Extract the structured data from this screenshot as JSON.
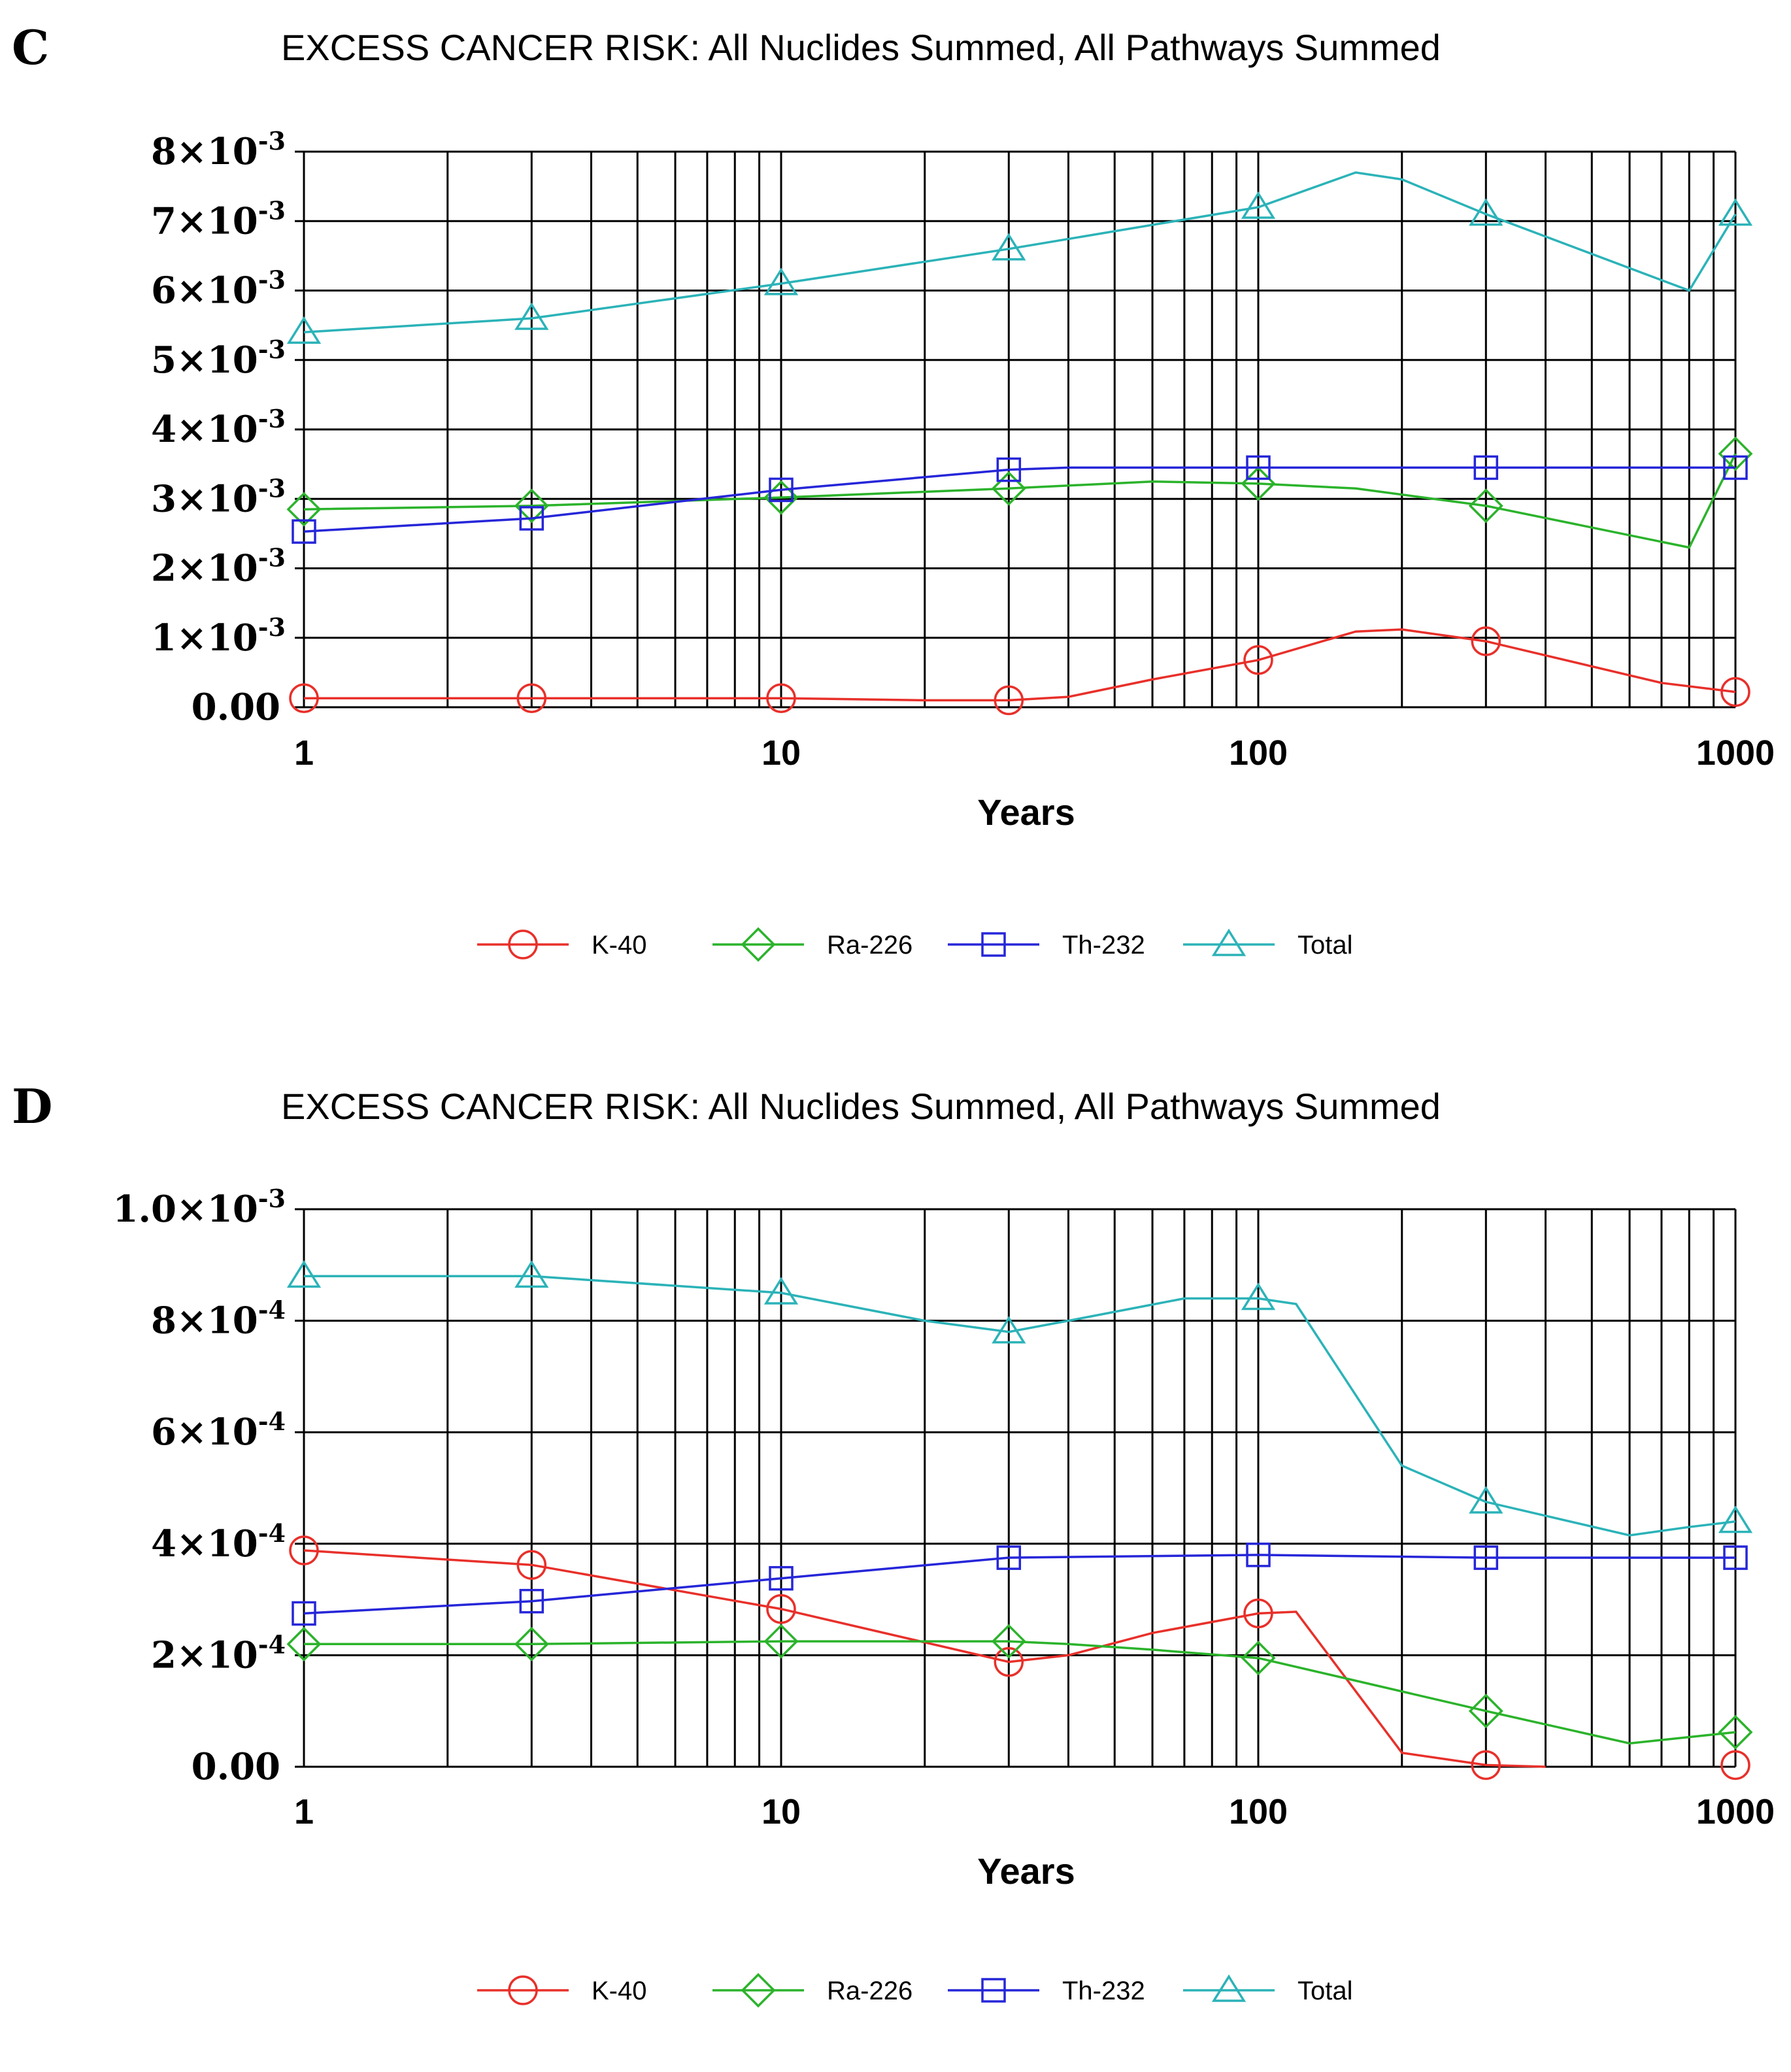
{
  "chart_data": [
    {
      "panel_label": "C",
      "type": "line",
      "title": "EXCESS CANCER RISK: All Nuclides Summed, All Pathways Summed",
      "xlabel": "Years",
      "ylabel": "",
      "x_scale": "log",
      "xlim": [
        1,
        1000
      ],
      "ylim": [
        0,
        0.008
      ],
      "x_tick_labels": [
        "1",
        "10",
        "100",
        "1000"
      ],
      "y_ticks": [
        {
          "value": 0,
          "base": "0.00",
          "exp": ""
        },
        {
          "value": 0.001,
          "base": "1×10",
          "exp": "-3"
        },
        {
          "value": 0.002,
          "base": "2×10",
          "exp": "-3"
        },
        {
          "value": 0.003,
          "base": "3×10",
          "exp": "-3"
        },
        {
          "value": 0.004,
          "base": "4×10",
          "exp": "-3"
        },
        {
          "value": 0.005,
          "base": "5×10",
          "exp": "-3"
        },
        {
          "value": 0.006,
          "base": "6×10",
          "exp": "-3"
        },
        {
          "value": 0.007,
          "base": "7×10",
          "exp": "-3"
        },
        {
          "value": 0.008,
          "base": "8×10",
          "exp": "-3"
        }
      ],
      "marker_x": [
        1,
        3,
        10,
        30,
        100,
        300,
        1000
      ],
      "series": [
        {
          "name": "K-40",
          "color": "#e8302a",
          "marker": "circle",
          "x": [
            1,
            3,
            10,
            20,
            30,
            40,
            60,
            100,
            160,
            200,
            300,
            700,
            1000
          ],
          "values": [
            0.00013,
            0.00013,
            0.00013,
            0.0001,
            0.0001,
            0.00015,
            0.0004,
            0.00068,
            0.00109,
            0.00112,
            0.00095,
            0.00035,
            0.00022
          ]
        },
        {
          "name": "Ra-226",
          "color": "#2bb32b",
          "marker": "diamond",
          "x": [
            1,
            3,
            10,
            30,
            60,
            100,
            160,
            300,
            800,
            1000
          ],
          "values": [
            0.00285,
            0.0029,
            0.00302,
            0.00315,
            0.00325,
            0.00322,
            0.00315,
            0.0029,
            0.0023,
            0.00365
          ]
        },
        {
          "name": "Th-232",
          "color": "#2626d9",
          "marker": "square",
          "x": [
            1,
            3,
            10,
            30,
            40,
            100,
            300,
            1000
          ],
          "values": [
            0.00253,
            0.00272,
            0.00313,
            0.00342,
            0.00345,
            0.00345,
            0.00345,
            0.00345
          ]
        },
        {
          "name": "Total",
          "color": "#2bb3b8",
          "marker": "triangle",
          "x": [
            1,
            3,
            10,
            30,
            100,
            160,
            200,
            300,
            800,
            1000
          ],
          "values": [
            0.0054,
            0.0056,
            0.0061,
            0.0066,
            0.0072,
            0.0077,
            0.0076,
            0.0071,
            0.006,
            0.0071
          ]
        }
      ]
    },
    {
      "panel_label": "D",
      "type": "line",
      "title": "EXCESS CANCER RISK: All Nuclides Summed, All Pathways Summed",
      "xlabel": "Years",
      "ylabel": "",
      "x_scale": "log",
      "xlim": [
        1,
        1000
      ],
      "ylim": [
        0,
        0.001
      ],
      "x_tick_labels": [
        "1",
        "10",
        "100",
        "1000"
      ],
      "y_ticks": [
        {
          "value": 0,
          "base": "0.00",
          "exp": ""
        },
        {
          "value": 0.0002,
          "base": "2×10",
          "exp": "-4"
        },
        {
          "value": 0.0004,
          "base": "4×10",
          "exp": "-4"
        },
        {
          "value": 0.0006,
          "base": "6×10",
          "exp": "-4"
        },
        {
          "value": 0.0008,
          "base": "8×10",
          "exp": "-4"
        },
        {
          "value": 0.001,
          "base": "1.0×10",
          "exp": "-3"
        }
      ],
      "marker_x": [
        1,
        3,
        10,
        30,
        100,
        300,
        1000
      ],
      "series": [
        {
          "name": "K-40",
          "color": "#e8302a",
          "marker": "circle",
          "x": [
            1,
            3,
            10,
            30,
            40,
            60,
            100,
            120,
            200,
            300,
            400
          ],
          "values": [
            0.000388,
            0.000362,
            0.000283,
            0.000188,
            0.0002,
            0.00024,
            0.000275,
            0.000278,
            2.5e-05,
            3e-06,
            0.0
          ],
          "marker_values": [
            0.000388,
            0.000362,
            0.000283,
            0.000188,
            0.000275,
            3e-06,
            3e-06
          ]
        },
        {
          "name": "Ra-226",
          "color": "#2bb32b",
          "marker": "diamond",
          "x": [
            1,
            3,
            10,
            30,
            40,
            60,
            100,
            300,
            600,
            1000
          ],
          "values": [
            0.00022,
            0.00022,
            0.000225,
            0.000225,
            0.00022,
            0.00021,
            0.000195,
            0.0001,
            4.2e-05,
            6.2e-05
          ]
        },
        {
          "name": "Th-232",
          "color": "#2626d9",
          "marker": "square",
          "x": [
            1,
            3,
            10,
            30,
            100,
            300,
            1000
          ],
          "values": [
            0.000275,
            0.000297,
            0.000338,
            0.000375,
            0.00038,
            0.000375,
            0.000375
          ]
        },
        {
          "name": "Total",
          "color": "#2bb3b8",
          "marker": "triangle",
          "x": [
            1,
            3,
            10,
            20,
            30,
            40,
            70,
            100,
            120,
            200,
            300,
            600,
            800,
            1000
          ],
          "values": [
            0.00088,
            0.00088,
            0.00085,
            0.0008,
            0.00078,
            0.0008,
            0.00084,
            0.00084,
            0.00083,
            0.00054,
            0.000475,
            0.000415,
            0.00043,
            0.00044
          ]
        }
      ]
    }
  ]
}
